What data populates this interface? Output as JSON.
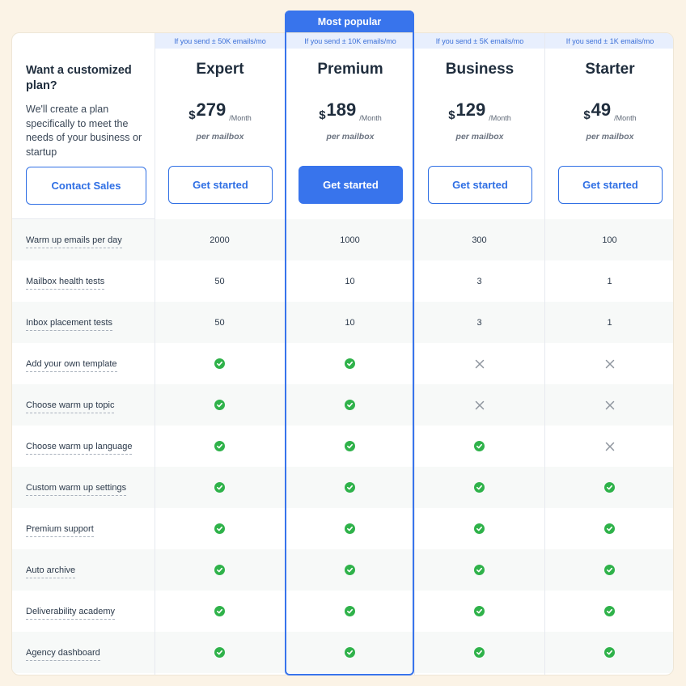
{
  "intro": {
    "title": "Want a customized plan?",
    "description": "We'll create a plan specifically to meet the needs of your business or startup",
    "contact_label": "Contact Sales"
  },
  "popular_label": "Most popular",
  "currency": "$",
  "period": "/Month",
  "unit_label": "per mailbox",
  "button_label": "Get started",
  "plans": [
    {
      "name": "Expert",
      "subtitle": "If you send ± 50K emails/mo",
      "price": "279"
    },
    {
      "name": "Premium",
      "subtitle": "If you send ± 10K emails/mo",
      "price": "189"
    },
    {
      "name": "Business",
      "subtitle": "If you send ± 5K emails/mo",
      "price": "129"
    },
    {
      "name": "Starter",
      "subtitle": "If you send ± 1K emails/mo",
      "price": "49"
    }
  ],
  "features": [
    {
      "label": "Warm up emails per day",
      "values": [
        "2000",
        "1000",
        "300",
        "100"
      ]
    },
    {
      "label": "Mailbox health tests",
      "values": [
        "50",
        "10",
        "3",
        "1"
      ]
    },
    {
      "label": "Inbox placement tests",
      "values": [
        "50",
        "10",
        "3",
        "1"
      ]
    },
    {
      "label": "Add your own template",
      "values": [
        "check",
        "check",
        "cross",
        "cross"
      ]
    },
    {
      "label": "Choose warm up topic",
      "values": [
        "check",
        "check",
        "cross",
        "cross"
      ]
    },
    {
      "label": "Choose warm up language",
      "values": [
        "check",
        "check",
        "check",
        "cross"
      ]
    },
    {
      "label": "Custom warm up settings",
      "values": [
        "check",
        "check",
        "check",
        "check"
      ]
    },
    {
      "label": "Premium support",
      "values": [
        "check",
        "check",
        "check",
        "check"
      ]
    },
    {
      "label": "Auto archive",
      "values": [
        "check",
        "check",
        "check",
        "check"
      ]
    },
    {
      "label": "Deliverability academy",
      "values": [
        "check",
        "check",
        "check",
        "check"
      ]
    },
    {
      "label": "Agency dashboard",
      "values": [
        "check",
        "check",
        "check",
        "check"
      ]
    }
  ],
  "colors": {
    "accent": "#3874ec",
    "check": "#2fb24a",
    "cross": "#8e959e",
    "background": "#fbf3e6"
  }
}
